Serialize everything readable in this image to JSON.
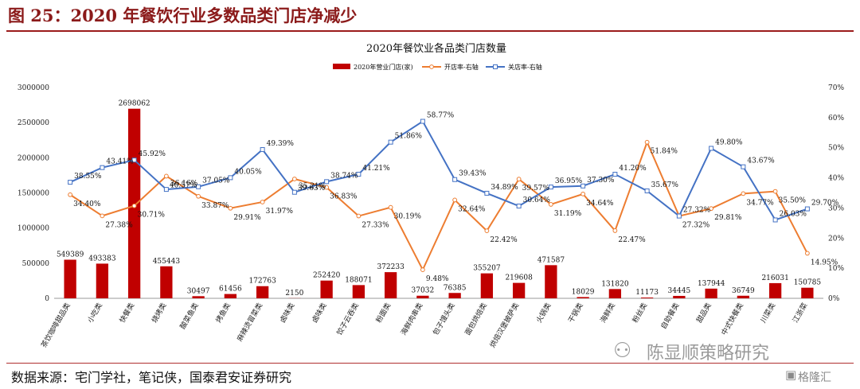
{
  "figure": {
    "title": "图 25：2020 年餐饮行业多数品类门店净减少",
    "source": "数据来源：宅门学社，笔记侠，国泰君安证券研究",
    "watermark": "陈显顺策略研究",
    "brand": "格隆汇"
  },
  "colors": {
    "bars": "#c00000",
    "open": "#ed7d31",
    "close": "#4472c4",
    "accent": "#9b1b1b"
  },
  "chart_data": {
    "type": "bar",
    "title": "2020年餐饮业各品类门店数量",
    "categories": [
      "茶饮咖啡甜品类",
      "小吃类",
      "快餐类",
      "烧烤类",
      "酸菜鱼类",
      "烤鱼类",
      "麻辣烫冒菜类",
      "卤味类",
      "卤味类",
      "饺子云吞类",
      "粉面类",
      "海鲜肉串类",
      "包子馒头类",
      "面包烘焙类",
      "烘焙汉堡披萨类",
      "火锅类",
      "干锅类",
      "海鲜类",
      "粉丝类",
      "自助餐类",
      "甜品类",
      "中式快餐类",
      "川菜类",
      "江浙菜"
    ],
    "series": [
      {
        "name": "2020年营业门店(家)",
        "axis": "left",
        "values": [
          549389,
          493383,
          2698062,
          455443,
          30497,
          61456,
          172763,
          2150,
          252420,
          188071,
          372233,
          37032,
          76385,
          355207,
          219608,
          471587,
          18029,
          131820,
          11173,
          34445,
          137944,
          36749,
          216031,
          150785
        ],
        "labels": [
          "549389",
          "493383",
          "2698062",
          "455443",
          "30497",
          "61456",
          "172763",
          "2150",
          "252420",
          "188071",
          "372233",
          "37032",
          "76385",
          "355207",
          "219608",
          "471587",
          "18029",
          "131820",
          "11173",
          "34445",
          "137944",
          "36749",
          "216031",
          "150785"
        ]
      },
      {
        "name": "开店率-右轴",
        "axis": "right",
        "values": [
          34.4,
          27.38,
          30.71,
          40.57,
          33.87,
          29.91,
          31.97,
          39.63,
          36.83,
          27.33,
          30.19,
          9.48,
          32.64,
          22.42,
          39.57,
          31.19,
          34.64,
          22.47,
          51.84,
          27.32,
          29.81,
          34.77,
          35.5,
          14.95
        ],
        "labels": [
          "34.40%",
          "27.38%",
          "30.71%",
          "40.57%",
          "33.87%",
          "29.91%",
          "31.97%",
          "39.63%",
          "36.83%",
          "27.33%",
          "30.19%",
          "9.48%",
          "32.64%",
          "22.42%",
          "39.57%",
          "31.19%",
          "34.64%",
          "22.47%",
          "51.84%",
          "27.32%",
          "29.81%",
          "34.77%",
          "35.50%",
          "14.95%"
        ]
      },
      {
        "name": "关店率-右轴",
        "axis": "right",
        "values": [
          38.55,
          43.41,
          45.92,
          36.16,
          37.05,
          40.05,
          49.39,
          35.21,
          38.74,
          41.21,
          51.86,
          58.77,
          39.43,
          34.89,
          30.64,
          36.95,
          37.3,
          41.2,
          35.67,
          27.32,
          49.8,
          43.67,
          26.03,
          29.7
        ],
        "labels": [
          "38.55%",
          "43.41%",
          "45.92%",
          "36.16%",
          "37.05%",
          "40.05%",
          "49.39%",
          "35.21%",
          "38.74%",
          "41.21%",
          "51.86%",
          "58.77%",
          "39.43%",
          "34.89%",
          "30.64%",
          "36.95%",
          "37.30%",
          "41.20%",
          "35.67%",
          "27.32%",
          "49.80%",
          "43.67%",
          "26.03%",
          "29.70%"
        ]
      }
    ],
    "ylim_left": [
      0,
      3000000
    ],
    "yticks_left": [
      "0",
      "500000",
      "1000000",
      "1500000",
      "2000000",
      "2500000",
      "3000000"
    ],
    "ylim_right": [
      0,
      70
    ],
    "yticks_right": [
      "0%",
      "10%",
      "20%",
      "30%",
      "40%",
      "50%",
      "60%",
      "70%"
    ],
    "legend_position": "top-center",
    "grid": false
  }
}
